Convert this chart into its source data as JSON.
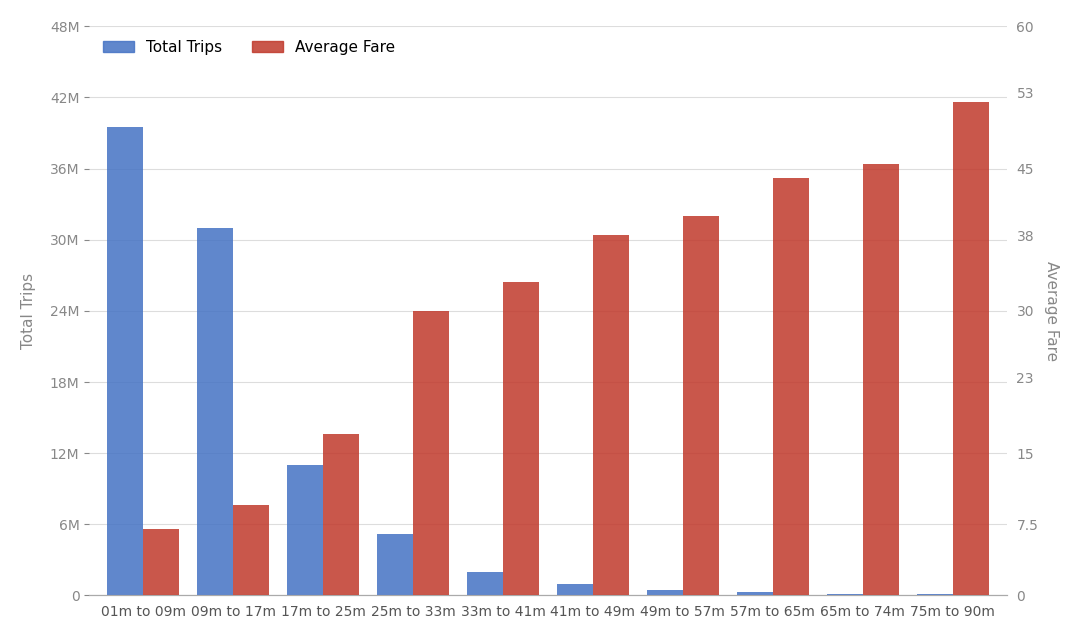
{
  "categories": [
    "01m to 09m",
    "09m to 17m",
    "17m to 25m",
    "25m to 33m",
    "33m to 41m",
    "41m to 49m",
    "49m to 57m",
    "57m to 65m",
    "65m to 74m",
    "75m to 90m"
  ],
  "total_trips": [
    39500000,
    31000000,
    11000000,
    5200000,
    2000000,
    1000000,
    500000,
    250000,
    130000,
    80000
  ],
  "avg_fare": [
    7.0,
    9.5,
    17.0,
    30.0,
    33.0,
    38.0,
    40.0,
    44.0,
    45.5,
    52.0
  ],
  "bar_color_trips": "#4472C4",
  "bar_color_fare": "#C0392B",
  "ylabel_left": "Total Trips",
  "ylabel_right": "Average Fare",
  "left_ylim": [
    0,
    48000000
  ],
  "right_ylim": [
    0,
    60
  ],
  "left_yticks": [
    0,
    6000000,
    12000000,
    18000000,
    24000000,
    30000000,
    36000000,
    42000000,
    48000000
  ],
  "left_yticklabels": [
    "0",
    "6M",
    "12M",
    "18M",
    "24M",
    "30M",
    "36M",
    "42M",
    "48M"
  ],
  "right_yticks": [
    0,
    7.5,
    15,
    23,
    30,
    38,
    45,
    53,
    60
  ],
  "right_yticklabels": [
    "0",
    "7.5",
    "15",
    "23",
    "30",
    "38",
    "45",
    "53",
    "60"
  ],
  "background_color": "#ffffff",
  "legend_loc": "upper left",
  "bar_alpha": 0.85,
  "bar_width": 0.4
}
